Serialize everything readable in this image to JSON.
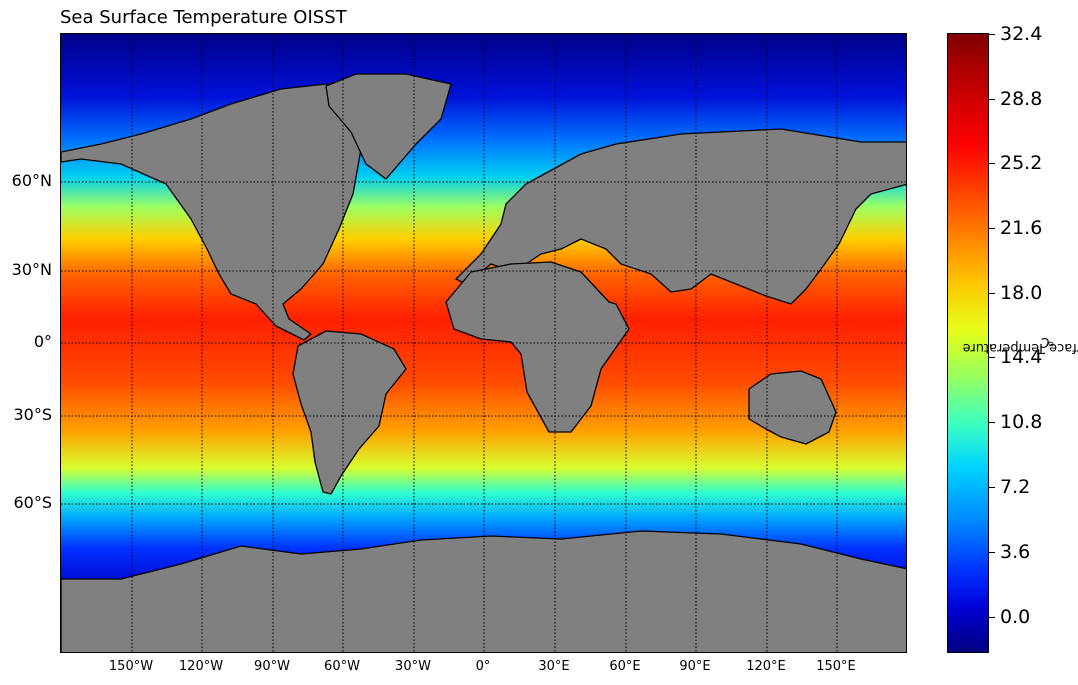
{
  "title": "Sea Surface Temperature OISST",
  "map": {
    "longitude_labels": [
      "150°W",
      "120°W",
      "90°W",
      "60°W",
      "30°W",
      "0°",
      "30°E",
      "60°E",
      "90°E",
      "120°E",
      "150°E"
    ],
    "latitude_labels": [
      "60°N",
      "30°N",
      "0°",
      "30°S",
      "60°S"
    ]
  },
  "colorbar": {
    "label_prefix": "Sea Surface Temperature ",
    "label_unit_sup": "o",
    "label_unit": "C",
    "ticks": [
      "32.4",
      "28.8",
      "25.2",
      "21.6",
      "18.0",
      "14.4",
      "10.8",
      "7.2",
      "3.6",
      "0.0"
    ]
  },
  "colors": {
    "land": "#808080",
    "coast": "#000000",
    "warm": "#ff2a00",
    "cold": "#00007f"
  }
}
